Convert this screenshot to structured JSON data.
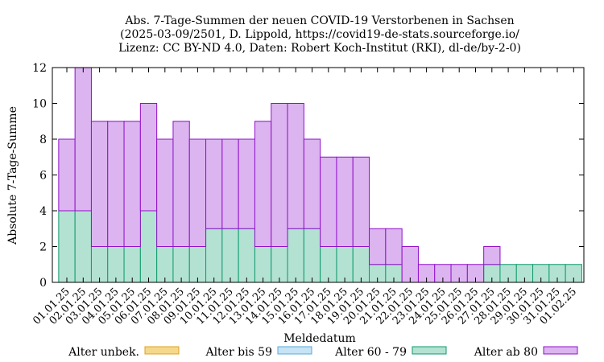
{
  "chart_data": {
    "type": "bar",
    "stacked": true,
    "title_lines": [
      "Abs. 7-Tage-Summen der neuen COVID-19 Verstorbenen in Sachsen",
      "(2025-03-09/2501, D. Lippold, https://covid19-de-stats.sourceforge.io/",
      "Lizenz: CC BY-ND 4.0, Daten: Robert Koch-Institut (RKI), dl-de/by-2-0)"
    ],
    "xlabel": "Meldedatum",
    "ylabel": "Absolute 7-Tage-Summe",
    "ylim": [
      0,
      12
    ],
    "yticks": [
      0,
      2,
      4,
      6,
      8,
      10,
      12
    ],
    "grid": false,
    "legend_position": "bottom",
    "xtick_labels": [
      "01.01.25",
      "02.01.25",
      "03.01.25",
      "04.01.25",
      "05.01.25",
      "06.01.25",
      "07.01.25",
      "08.01.25",
      "09.01.25",
      "10.01.25",
      "11.01.25",
      "12.01.25",
      "13.01.25",
      "14.01.25",
      "15.01.25",
      "16.01.25",
      "17.01.25",
      "18.01.25",
      "19.01.25",
      "20.01.25",
      "21.01.25",
      "22.01.25",
      "23.01.25",
      "24.01.25",
      "25.01.25",
      "26.01.25",
      "27.01.25",
      "28.01.25",
      "29.01.25",
      "30.01.25",
      "31.01.25",
      "01.02.25"
    ],
    "series": [
      {
        "name": "Alter unbek.",
        "color": "#f5d98a",
        "stroke": "#e0a020",
        "values": [
          0,
          0,
          0,
          0,
          0,
          0,
          0,
          0,
          0,
          0,
          0,
          0,
          0,
          0,
          0,
          0,
          0,
          0,
          0,
          0,
          0,
          0,
          0,
          0,
          0,
          0,
          0,
          0,
          0,
          0,
          0,
          0
        ]
      },
      {
        "name": "Alter bis 59",
        "color": "#c6e4f5",
        "stroke": "#5aa8d8",
        "values": [
          0,
          0,
          0,
          0,
          0,
          0,
          0,
          0,
          0,
          0,
          0,
          0,
          0,
          0,
          0,
          0,
          0,
          0,
          0,
          0,
          0,
          0,
          0,
          0,
          0,
          0,
          0,
          0,
          0,
          0,
          0,
          0
        ]
      },
      {
        "name": "Alter 60 - 79",
        "color": "#b3e2d2",
        "stroke": "#109a6e",
        "values": [
          4,
          4,
          2,
          2,
          2,
          4,
          2,
          2,
          2,
          3,
          3,
          3,
          2,
          2,
          3,
          3,
          2,
          2,
          2,
          1,
          1,
          0,
          0,
          0,
          0,
          0,
          1,
          1,
          1,
          1,
          1,
          1
        ]
      },
      {
        "name": "Alter ab 80",
        "color": "#dcb4f0",
        "stroke": "#9010c8",
        "values": [
          4,
          8,
          7,
          7,
          7,
          6,
          6,
          7,
          6,
          5,
          5,
          5,
          7,
          8,
          7,
          5,
          5,
          5,
          5,
          2,
          2,
          2,
          1,
          1,
          1,
          1,
          1,
          0,
          0,
          0,
          0,
          0
        ]
      }
    ]
  }
}
